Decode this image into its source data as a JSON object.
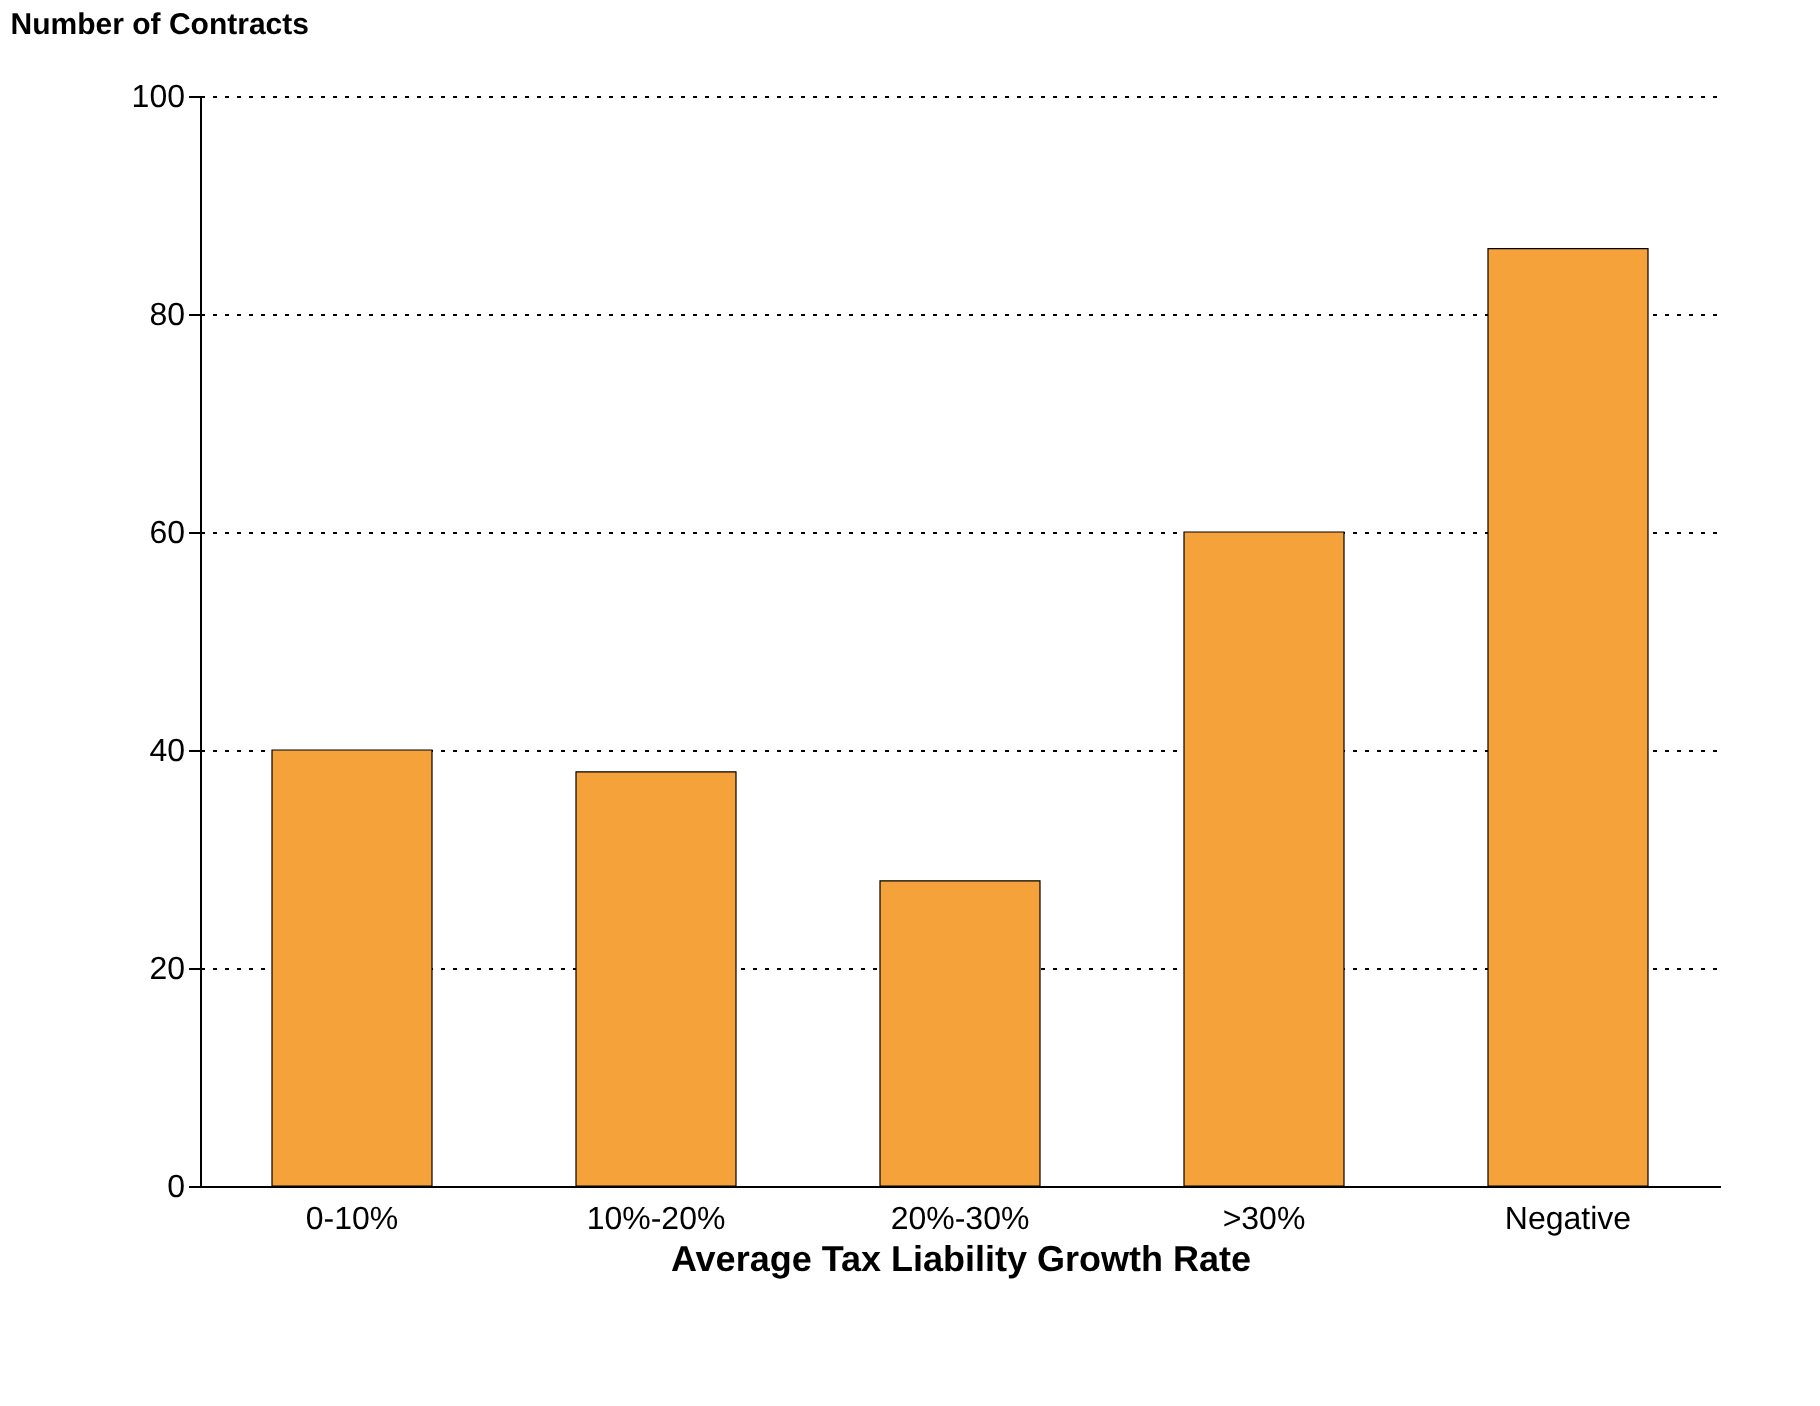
{
  "chart_data": {
    "type": "bar",
    "ylabel": "Number of Contracts",
    "xlabel": "Average Tax Liability Growth Rate",
    "categories": [
      "0-10%",
      "10%-20%",
      "20%-30%",
      ">30%",
      "Negative"
    ],
    "values": [
      40,
      38,
      28,
      60,
      86
    ],
    "color": "#f5a23a",
    "ylim": [
      0,
      100
    ],
    "yticks": [
      0,
      20,
      40,
      60,
      80,
      100
    ],
    "grid": "y"
  }
}
